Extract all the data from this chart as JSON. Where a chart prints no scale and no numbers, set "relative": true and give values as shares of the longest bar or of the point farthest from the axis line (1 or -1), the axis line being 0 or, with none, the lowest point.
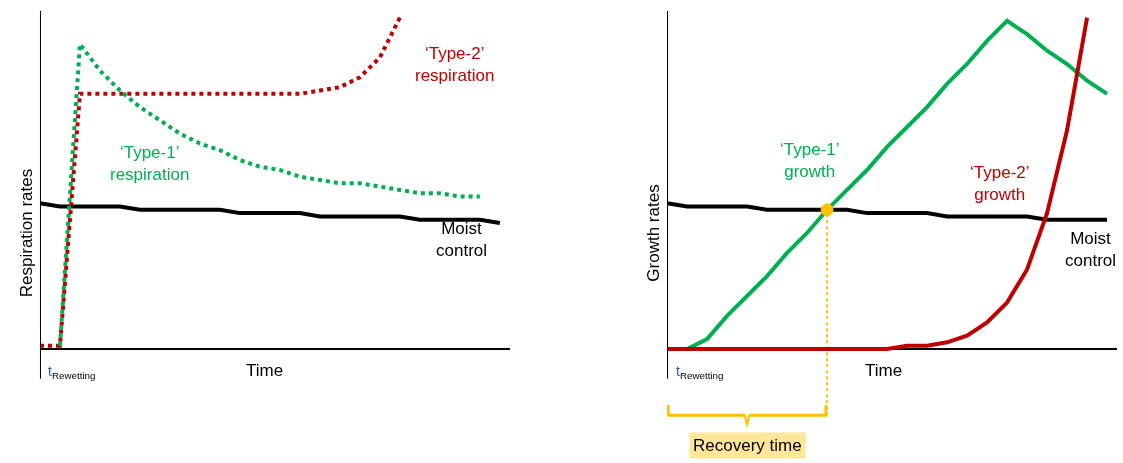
{
  "chart_data": [
    {
      "type": "line",
      "relative": true,
      "xlabel": "Time",
      "ylabel": "Respiration rates",
      "categories": [
        null,
        null,
        null,
        null,
        null,
        null,
        null,
        null,
        null,
        null,
        null,
        null,
        null,
        null,
        null,
        null,
        null,
        null,
        null,
        null,
        null,
        null,
        null,
        null
      ],
      "series": [
        {
          "name": "Moist control",
          "color": "#000000",
          "line_style": "solid",
          "values": [
            0.44,
            0.43,
            0.43,
            0.43,
            0.43,
            0.42,
            0.42,
            0.42,
            0.42,
            0.42,
            0.41,
            0.41,
            0.41,
            0.41,
            0.4,
            0.4,
            0.4,
            0.4,
            0.4,
            0.39,
            0.39,
            0.39,
            0.39,
            0.38
          ]
        },
        {
          "name": "‘Type-2’ respiration",
          "color": "#c00000",
          "line_style": "dotted",
          "values": [
            0.01,
            0.01,
            0.77,
            0.77,
            0.77,
            0.77,
            0.77,
            0.77,
            0.77,
            0.77,
            0.77,
            0.77,
            0.77,
            0.77,
            0.78,
            0.79,
            0.82,
            0.88,
            1.0,
            null,
            null,
            null,
            null,
            null
          ]
        },
        {
          "name": "‘Type-1’ respiration",
          "color": "#00b050",
          "line_style": "dotted",
          "values": [
            null,
            0.01,
            0.92,
            0.84,
            0.78,
            0.73,
            0.69,
            0.65,
            0.62,
            0.6,
            0.57,
            0.55,
            0.54,
            0.52,
            0.51,
            0.5,
            0.5,
            0.49,
            0.48,
            0.47,
            0.47,
            0.46,
            0.46,
            null
          ]
        }
      ],
      "annotations": [
        "t$_{Rewetting}$"
      ]
    },
    {
      "type": "line",
      "relative": true,
      "xlabel": "Time",
      "ylabel": "Growth rates",
      "categories": [
        null,
        null,
        null,
        null,
        null,
        null,
        null,
        null,
        null,
        null,
        null,
        null,
        null,
        null,
        null,
        null,
        null,
        null,
        null,
        null,
        null,
        null,
        null
      ],
      "series": [
        {
          "name": "Moist control",
          "color": "#000000",
          "line_style": "solid",
          "values": [
            0.44,
            0.43,
            0.43,
            0.43,
            0.43,
            0.42,
            0.42,
            0.42,
            0.42,
            0.42,
            0.41,
            0.41,
            0.41,
            0.41,
            0.4,
            0.4,
            0.4,
            0.4,
            0.4,
            0.39,
            0.39,
            0.39,
            0.39
          ]
        },
        {
          "name": "‘Type-1’ growth",
          "color": "#00b050",
          "line_style": "solid",
          "values": [
            null,
            0.0,
            0.03,
            0.1,
            0.16,
            0.22,
            0.29,
            0.35,
            0.42,
            0.48,
            0.54,
            0.61,
            0.67,
            0.73,
            0.8,
            0.86,
            0.93,
            0.99,
            0.95,
            0.9,
            0.86,
            0.81,
            0.77
          ]
        },
        {
          "name": "‘Type-2’ growth",
          "color": "#c00000",
          "line_style": "solid",
          "values": [
            0.0,
            0.0,
            0.0,
            0.0,
            0.0,
            0.0,
            0.0,
            0.0,
            0.0,
            0.0,
            0.0,
            0.0,
            0.01,
            0.01,
            0.02,
            0.04,
            0.08,
            0.14,
            0.24,
            0.41,
            0.66,
            1.0,
            null
          ]
        }
      ],
      "annotations": [
        "t$_{Rewetting}$",
        "Recovery time"
      ]
    }
  ]
}
